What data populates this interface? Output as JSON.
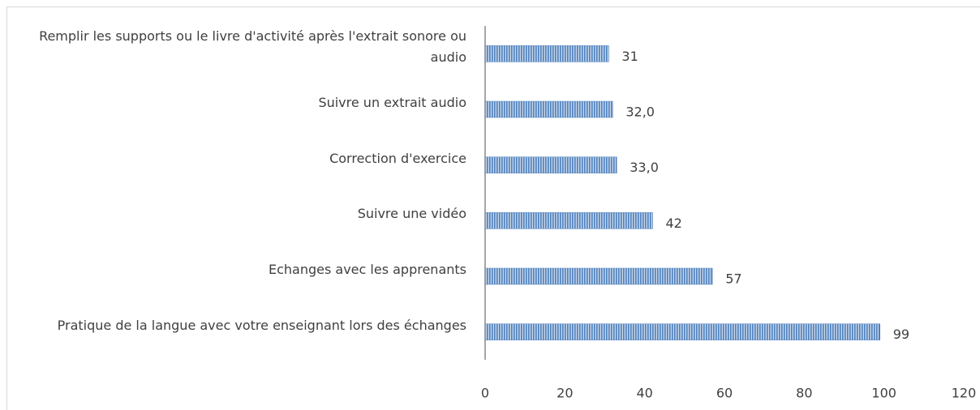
{
  "chart_data": {
    "type": "bar",
    "orientation": "horizontal",
    "categories": [
      "Remplir les supports ou le livre d'activité après l'extrait sonore ou audio",
      "Suivre un extrait audio",
      "Correction d'exercice",
      "Suivre une vidéo",
      "Echanges avec les apprenants",
      "Pratique de la langue avec votre enseignant lors des échanges"
    ],
    "values": [
      31,
      32,
      33,
      42,
      57,
      99
    ],
    "value_labels": [
      "31",
      "32,0",
      "33,0",
      "42",
      "57",
      "99"
    ],
    "color": "#4f81bd",
    "xlim": [
      0,
      120
    ],
    "xticks": [
      0,
      20,
      40,
      60,
      80,
      100,
      120
    ]
  }
}
